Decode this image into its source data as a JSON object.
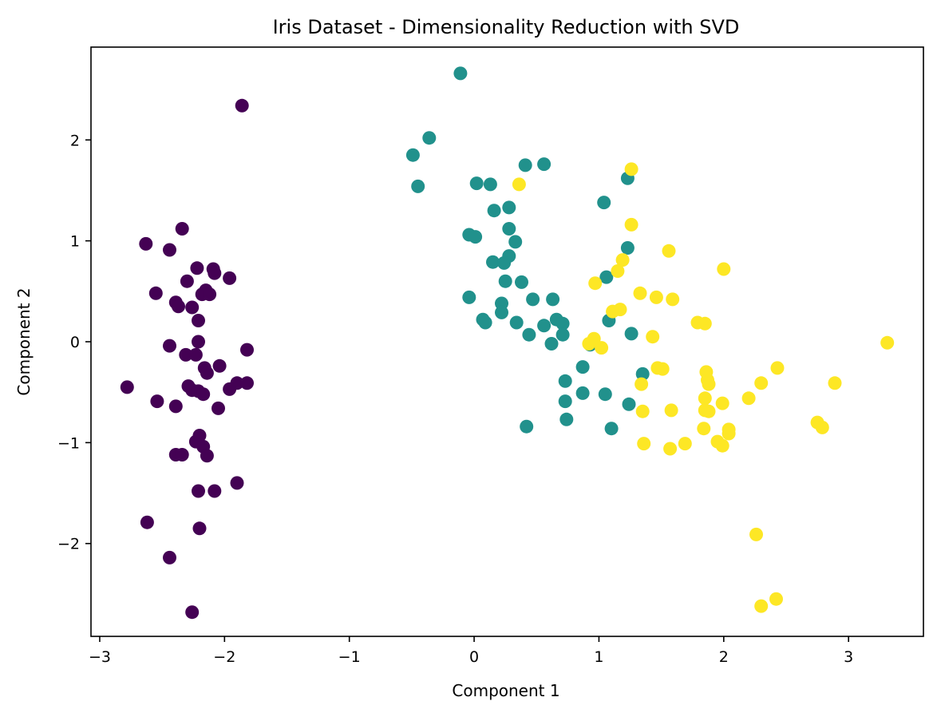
{
  "chart_data": {
    "type": "scatter",
    "title": "Iris Dataset - Dimensionality Reduction with SVD",
    "xlabel": "Component 1",
    "ylabel": "Component 2",
    "xlim": [
      -3.07,
      3.6
    ],
    "ylim": [
      -2.92,
      2.92
    ],
    "xticks": [
      -3,
      -2,
      -1,
      0,
      1,
      2,
      3
    ],
    "yticks": [
      -2,
      -1,
      0,
      1,
      2
    ],
    "grid": false,
    "legend": "none",
    "series": [
      {
        "color": "#440154",
        "points": [
          [
            -1.86,
            2.34
          ],
          [
            -2.34,
            1.12
          ],
          [
            -2.63,
            0.97
          ],
          [
            -2.44,
            0.91
          ],
          [
            -2.55,
            0.48
          ],
          [
            -2.22,
            0.73
          ],
          [
            -2.09,
            0.72
          ],
          [
            -2.08,
            0.68
          ],
          [
            -1.96,
            0.63
          ],
          [
            -2.3,
            0.6
          ],
          [
            -2.15,
            0.51
          ],
          [
            -2.18,
            0.47
          ],
          [
            -2.12,
            0.47
          ],
          [
            -2.39,
            0.39
          ],
          [
            -2.37,
            0.35
          ],
          [
            -2.26,
            0.34
          ],
          [
            -2.21,
            0.21
          ],
          [
            -2.44,
            -0.04
          ],
          [
            -2.21,
            0.0
          ],
          [
            -2.31,
            -0.13
          ],
          [
            -2.23,
            -0.13
          ],
          [
            -2.04,
            -0.24
          ],
          [
            -2.16,
            -0.26
          ],
          [
            -2.14,
            -0.31
          ],
          [
            -1.82,
            -0.08
          ],
          [
            -2.78,
            -0.45
          ],
          [
            -2.29,
            -0.44
          ],
          [
            -2.26,
            -0.48
          ],
          [
            -2.21,
            -0.49
          ],
          [
            -2.17,
            -0.52
          ],
          [
            -1.9,
            -0.41
          ],
          [
            -1.82,
            -0.41
          ],
          [
            -1.96,
            -0.47
          ],
          [
            -2.54,
            -0.59
          ],
          [
            -2.39,
            -0.64
          ],
          [
            -2.05,
            -0.66
          ],
          [
            -2.2,
            -0.93
          ],
          [
            -2.23,
            -0.99
          ],
          [
            -2.17,
            -1.04
          ],
          [
            -2.39,
            -1.12
          ],
          [
            -2.34,
            -1.12
          ],
          [
            -2.14,
            -1.13
          ],
          [
            -1.9,
            -1.4
          ],
          [
            -2.21,
            -1.48
          ],
          [
            -2.08,
            -1.48
          ],
          [
            -2.62,
            -1.79
          ],
          [
            -2.2,
            -1.85
          ],
          [
            -2.44,
            -2.14
          ],
          [
            -2.26,
            -2.68
          ]
        ]
      },
      {
        "color": "#21918c",
        "points": [
          [
            -0.11,
            2.66
          ],
          [
            -0.36,
            2.02
          ],
          [
            -0.49,
            1.85
          ],
          [
            -0.45,
            1.54
          ],
          [
            0.41,
            1.75
          ],
          [
            0.56,
            1.76
          ],
          [
            0.02,
            1.57
          ],
          [
            0.13,
            1.56
          ],
          [
            1.23,
            1.62
          ],
          [
            1.04,
            1.38
          ],
          [
            0.16,
            1.3
          ],
          [
            0.28,
            1.33
          ],
          [
            0.28,
            1.12
          ],
          [
            -0.04,
            1.06
          ],
          [
            0.01,
            1.04
          ],
          [
            0.33,
            0.99
          ],
          [
            1.23,
            0.93
          ],
          [
            0.28,
            0.85
          ],
          [
            0.15,
            0.79
          ],
          [
            0.24,
            0.78
          ],
          [
            1.06,
            0.64
          ],
          [
            0.25,
            0.6
          ],
          [
            0.38,
            0.59
          ],
          [
            -0.04,
            0.44
          ],
          [
            0.47,
            0.42
          ],
          [
            0.63,
            0.42
          ],
          [
            0.22,
            0.38
          ],
          [
            0.22,
            0.29
          ],
          [
            0.07,
            0.22
          ],
          [
            0.09,
            0.19
          ],
          [
            0.34,
            0.19
          ],
          [
            0.66,
            0.22
          ],
          [
            0.71,
            0.18
          ],
          [
            0.56,
            0.16
          ],
          [
            1.08,
            0.21
          ],
          [
            0.44,
            0.07
          ],
          [
            0.71,
            0.07
          ],
          [
            1.26,
            0.08
          ],
          [
            0.62,
            -0.02
          ],
          [
            0.93,
            -0.03
          ],
          [
            0.87,
            -0.25
          ],
          [
            1.35,
            -0.32
          ],
          [
            0.73,
            -0.39
          ],
          [
            0.87,
            -0.51
          ],
          [
            1.05,
            -0.52
          ],
          [
            0.73,
            -0.59
          ],
          [
            1.24,
            -0.62
          ],
          [
            0.74,
            -0.77
          ],
          [
            1.1,
            -0.86
          ],
          [
            0.42,
            -0.84
          ]
        ]
      },
      {
        "color": "#fde725",
        "points": [
          [
            1.26,
            1.71
          ],
          [
            0.36,
            1.56
          ],
          [
            1.26,
            1.16
          ],
          [
            1.56,
            0.9
          ],
          [
            1.19,
            0.81
          ],
          [
            2.0,
            0.72
          ],
          [
            1.15,
            0.7
          ],
          [
            0.97,
            0.58
          ],
          [
            1.33,
            0.48
          ],
          [
            1.46,
            0.44
          ],
          [
            1.59,
            0.42
          ],
          [
            1.17,
            0.32
          ],
          [
            1.11,
            0.3
          ],
          [
            1.79,
            0.19
          ],
          [
            1.85,
            0.18
          ],
          [
            1.43,
            0.05
          ],
          [
            0.96,
            0.03
          ],
          [
            0.92,
            -0.02
          ],
          [
            1.02,
            -0.06
          ],
          [
            3.31,
            -0.01
          ],
          [
            1.47,
            -0.26
          ],
          [
            1.51,
            -0.27
          ],
          [
            2.43,
            -0.26
          ],
          [
            1.86,
            -0.3
          ],
          [
            1.87,
            -0.38
          ],
          [
            1.88,
            -0.42
          ],
          [
            2.3,
            -0.41
          ],
          [
            2.89,
            -0.41
          ],
          [
            1.34,
            -0.42
          ],
          [
            2.2,
            -0.56
          ],
          [
            1.85,
            -0.56
          ],
          [
            1.99,
            -0.61
          ],
          [
            1.85,
            -0.68
          ],
          [
            1.88,
            -0.69
          ],
          [
            1.35,
            -0.69
          ],
          [
            1.58,
            -0.68
          ],
          [
            2.75,
            -0.8
          ],
          [
            2.79,
            -0.85
          ],
          [
            2.04,
            -0.87
          ],
          [
            2.04,
            -0.91
          ],
          [
            1.84,
            -0.86
          ],
          [
            1.95,
            -0.99
          ],
          [
            1.36,
            -1.01
          ],
          [
            1.69,
            -1.01
          ],
          [
            1.99,
            -1.03
          ],
          [
            1.57,
            -1.06
          ],
          [
            2.26,
            -1.91
          ],
          [
            2.42,
            -2.55
          ],
          [
            2.3,
            -2.62
          ]
        ]
      }
    ]
  }
}
